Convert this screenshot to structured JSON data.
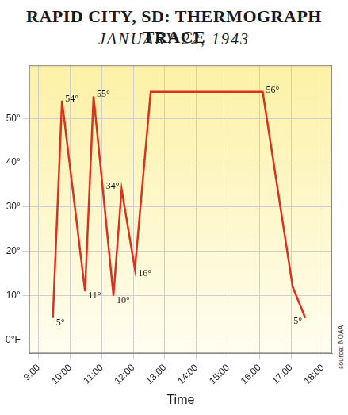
{
  "chart_data": {
    "type": "line",
    "title": "RAPID CITY, SD: THERMOGRAPH TRACE",
    "subtitle": "JANUARY 22, 1943",
    "x_label": "Time",
    "source": "source: NOAA",
    "x": [
      9.45,
      9.74,
      10.47,
      10.74,
      11.37,
      11.63,
      12.05,
      12.55,
      16.1,
      17.05,
      17.45
    ],
    "values": [
      5,
      54,
      11,
      55,
      10,
      34,
      16,
      56,
      56,
      12,
      5
    ],
    "value_labels": [
      "5°",
      "54°",
      "11°",
      "55°",
      "10°",
      "34°",
      "16°",
      null,
      "56°",
      null,
      "5°"
    ],
    "color": "#d9321f",
    "xlim": [
      8.7,
      18.3
    ],
    "xticks": [
      {
        "value": 9,
        "label": "9:00"
      },
      {
        "value": 10,
        "label": "10:00"
      },
      {
        "value": 11,
        "label": "11:00"
      },
      {
        "value": 12,
        "label": "12:00"
      },
      {
        "value": 13,
        "label": "13:00"
      },
      {
        "value": 14,
        "label": "14:00"
      },
      {
        "value": 15,
        "label": "15:00"
      },
      {
        "value": 16,
        "label": "16:00"
      },
      {
        "value": 17,
        "label": "17:00"
      },
      {
        "value": 18,
        "label": "18:00"
      }
    ],
    "ylim": [
      -3,
      62
    ],
    "yticks": [
      {
        "value": 0,
        "label": "0°F"
      },
      {
        "value": 10,
        "label": "10°"
      },
      {
        "value": 20,
        "label": "20°"
      },
      {
        "value": 30,
        "label": "30°"
      },
      {
        "value": 40,
        "label": "40°"
      },
      {
        "value": 50,
        "label": "50°"
      }
    ],
    "grid": true,
    "data_labels": true,
    "marker": "none",
    "line_style": "solid"
  }
}
